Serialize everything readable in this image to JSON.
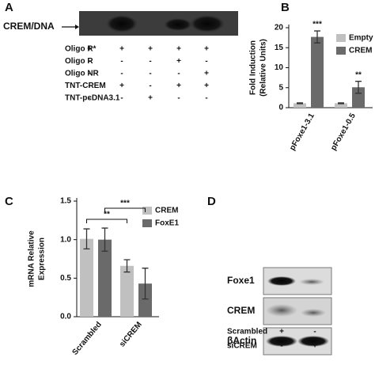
{
  "panel_a": {
    "label": "A",
    "band_label": "CREM/DNA",
    "rows": [
      {
        "name": "Oligo R*",
        "signs": [
          "+",
          "+",
          "+",
          "+",
          "+"
        ]
      },
      {
        "name": "Oligo R",
        "signs": [
          "-",
          "-",
          "-",
          "+",
          "-"
        ]
      },
      {
        "name": "Oligo NR",
        "signs": [
          "-",
          "-",
          "-",
          "-",
          "+"
        ]
      },
      {
        "name": "TNT-CREM",
        "signs": [
          "-",
          "+",
          "-",
          "+",
          "+"
        ]
      },
      {
        "name": "TNT-pcDNA3.1",
        "signs": [
          "-",
          "-",
          "+",
          "-",
          "-"
        ]
      }
    ]
  },
  "chart_data": [
    {
      "type": "bar",
      "panel": "B",
      "ylabel": [
        "Fold Induction",
        "(Relative Units)"
      ],
      "categories": [
        "pFoxe1-3.1",
        "pFoxe1-0.5"
      ],
      "series": [
        {
          "name": "Empty",
          "color": "#c0c0c0",
          "values": [
            1.1,
            1.1
          ],
          "errors": [
            0.1,
            0.1
          ]
        },
        {
          "name": "CREM",
          "color": "#6a6a6a",
          "values": [
            17.7,
            5.1
          ],
          "errors": [
            1.5,
            1.5
          ]
        }
      ],
      "annotations": [
        "***",
        "**"
      ],
      "ylim": [
        0,
        20
      ],
      "yticks": [
        0,
        5,
        10,
        15,
        20
      ],
      "legend": "upper-right"
    },
    {
      "type": "bar",
      "panel": "C",
      "ylabel": [
        "mRNA Relative",
        "Expression"
      ],
      "categories": [
        "Scrambled",
        "siCREM"
      ],
      "series": [
        {
          "name": "CREM",
          "color": "#c0c0c0",
          "values": [
            1.01,
            0.66
          ],
          "errors": [
            0.13,
            0.08
          ]
        },
        {
          "name": "FoxE1",
          "color": "#6a6a6a",
          "values": [
            1.0,
            0.43
          ],
          "errors": [
            0.15,
            0.2
          ]
        }
      ],
      "annotations": [
        "**",
        "***"
      ],
      "ylim": [
        0,
        1.5
      ],
      "yticks": [
        {
          "value": 0,
          "label": "0.0"
        },
        {
          "value": 0.5,
          "label": "0.5"
        },
        {
          "value": 1,
          "label": "1.0"
        },
        {
          "value": 1.5,
          "label": "1.5"
        }
      ],
      "legend": "right"
    }
  ],
  "panel_d": {
    "label": "D",
    "bands": [
      "Foxe1",
      "CREM",
      "βActin"
    ],
    "rows": [
      {
        "name": "Scrambled",
        "signs": [
          "+",
          "-"
        ]
      },
      {
        "name": "siCREM",
        "signs": [
          "-",
          "+"
        ]
      }
    ]
  }
}
